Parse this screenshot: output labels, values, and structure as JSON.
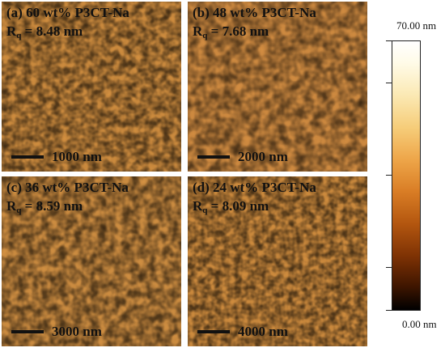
{
  "panels": [
    {
      "label": "(a) 60 wt% P3CT-Na",
      "rq_symbol": "R",
      "rq_sub": "q",
      "rq_value": " = 8.48 nm",
      "scale_label": "1000 nm"
    },
    {
      "label": "(b) 48 wt% P3CT-Na",
      "rq_symbol": "R",
      "rq_sub": "q",
      "rq_value": " = 7.68 nm",
      "scale_label": "2000 nm"
    },
    {
      "label": "(c) 36 wt% P3CT-Na",
      "rq_symbol": "R",
      "rq_sub": "q",
      "rq_value": " = 8.59 nm",
      "scale_label": "3000 nm"
    },
    {
      "label": "(d) 24 wt% P3CT-Na",
      "rq_symbol": "R",
      "rq_sub": "q",
      "rq_value": " = 8.09 nm",
      "scale_label": "4000 nm"
    }
  ],
  "colorbar": {
    "max_label": "70.00 nm",
    "min_label": "0.00 nm",
    "colors": [
      "#ffffff",
      "#f6cd7a",
      "#d97d25",
      "#7e3204",
      "#000000"
    ]
  }
}
